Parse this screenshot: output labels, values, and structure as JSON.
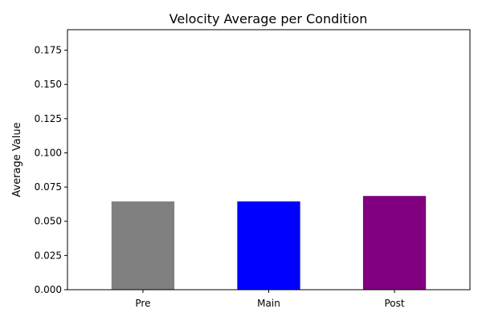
{
  "chart_data": {
    "type": "bar",
    "title": "Velocity Average per Condition",
    "xlabel": "",
    "ylabel": "Average Value",
    "categories": [
      "Pre",
      "Main",
      "Post"
    ],
    "values": [
      0.0645,
      0.0645,
      0.0685
    ],
    "colors": [
      "#808080",
      "#0000ff",
      "#800080"
    ],
    "ylim": [
      0,
      0.19
    ],
    "yticks": [
      0.0,
      0.025,
      0.05,
      0.075,
      0.1,
      0.125,
      0.15,
      0.175
    ],
    "ytick_labels": [
      "0.000",
      "0.025",
      "0.050",
      "0.075",
      "0.100",
      "0.125",
      "0.150",
      "0.175"
    ],
    "grid": false,
    "legend": "none"
  }
}
